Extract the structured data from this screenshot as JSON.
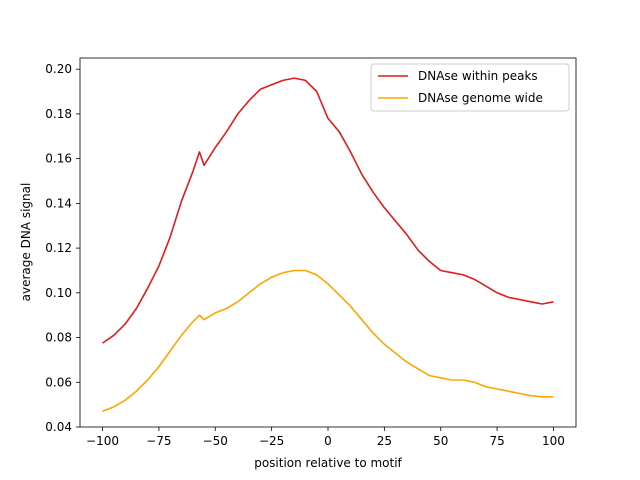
{
  "chart_data": {
    "type": "line",
    "title": "",
    "xlabel": "position relative to motif",
    "ylabel": "average DNA signal",
    "xlim": [
      -110,
      110
    ],
    "ylim": [
      0.04,
      0.205
    ],
    "xticks": [
      -100,
      -75,
      -50,
      -25,
      0,
      25,
      50,
      75,
      100
    ],
    "xtick_labels": [
      "−100",
      "−75",
      "−50",
      "−25",
      "0",
      "25",
      "50",
      "75",
      "100"
    ],
    "yticks": [
      0.04,
      0.06,
      0.08,
      0.1,
      0.12,
      0.14,
      0.16,
      0.18,
      0.2
    ],
    "ytick_labels": [
      "0.04",
      "0.06",
      "0.08",
      "0.10",
      "0.12",
      "0.14",
      "0.16",
      "0.18",
      "0.20"
    ],
    "grid": false,
    "legend_position": "top-right",
    "x": [
      -100,
      -95,
      -90,
      -85,
      -80,
      -75,
      -70,
      -65,
      -60,
      -57,
      -55,
      -50,
      -45,
      -40,
      -35,
      -30,
      -25,
      -20,
      -15,
      -10,
      -5,
      0,
      5,
      10,
      15,
      20,
      25,
      30,
      35,
      40,
      45,
      50,
      55,
      60,
      65,
      70,
      75,
      80,
      85,
      90,
      95,
      100
    ],
    "series": [
      {
        "name": "DNAse within peaks",
        "color": "#e41a1c",
        "values": [
          0.0775,
          0.081,
          0.086,
          0.093,
          0.102,
          0.112,
          0.125,
          0.141,
          0.154,
          0.163,
          0.157,
          0.165,
          0.172,
          0.18,
          0.186,
          0.191,
          0.193,
          0.195,
          0.196,
          0.195,
          0.19,
          0.178,
          0.172,
          0.163,
          0.153,
          0.145,
          0.138,
          0.132,
          0.126,
          0.119,
          0.114,
          0.11,
          0.109,
          0.108,
          0.106,
          0.103,
          0.1,
          0.098,
          0.097,
          0.096,
          0.095,
          0.096
        ]
      },
      {
        "name": "DNAse genome wide",
        "color": "#ffa500",
        "values": [
          0.047,
          0.049,
          0.052,
          0.056,
          0.061,
          0.067,
          0.074,
          0.081,
          0.087,
          0.09,
          0.088,
          0.091,
          0.093,
          0.096,
          0.1,
          0.104,
          0.107,
          0.109,
          0.11,
          0.11,
          0.108,
          0.104,
          0.099,
          0.094,
          0.088,
          0.082,
          0.077,
          0.073,
          0.069,
          0.066,
          0.063,
          0.062,
          0.061,
          0.061,
          0.06,
          0.058,
          0.057,
          0.056,
          0.055,
          0.054,
          0.0535,
          0.0535
        ]
      }
    ]
  }
}
